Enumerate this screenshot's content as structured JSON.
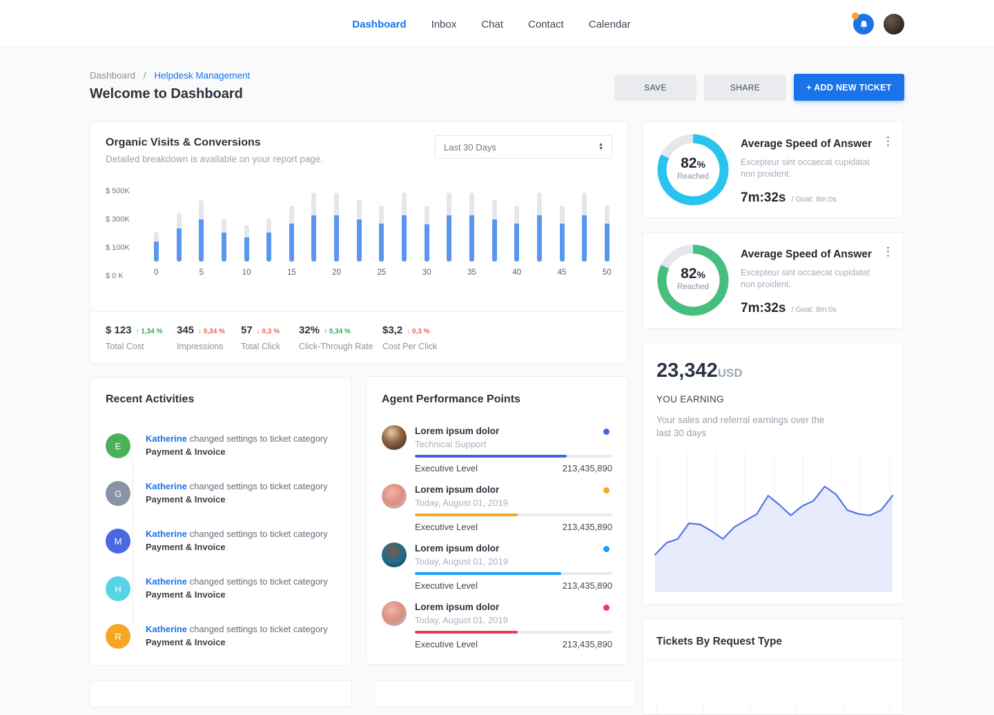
{
  "nav": {
    "items": [
      {
        "label": "Dashboard",
        "active": true
      },
      {
        "label": "Inbox",
        "active": false
      },
      {
        "label": "Chat",
        "active": false
      },
      {
        "label": "Contact",
        "active": false
      },
      {
        "label": "Calendar",
        "active": false
      }
    ]
  },
  "page": {
    "breadcrumb": {
      "parent": "Dashboard",
      "separator": "/",
      "current": "Helpdesk Management"
    },
    "title": "Welcome to Dashboard",
    "save_label": "SAVE",
    "share_label": "SHARE",
    "add_ticket_label": "+ ADD NEW TICKET"
  },
  "organic": {
    "title": "Organic Visits & Conversions",
    "subtitle": "Detailed breakdown is available on your report page.",
    "range_selected": "Last 30 Days",
    "stats": [
      {
        "value": "$ 123",
        "delta": "1,34 %",
        "direction": "up",
        "label": "Total Cost"
      },
      {
        "value": "345",
        "delta": "0,34 %",
        "direction": "down",
        "label": "Impressions"
      },
      {
        "value": "57",
        "delta": "0,3 %",
        "direction": "down",
        "label": "Total Click"
      },
      {
        "value": "32%",
        "delta": "0,34 %",
        "direction": "up",
        "label": "Click-Through Rate"
      },
      {
        "value": "$3,2",
        "delta": "0,3 %",
        "direction": "down",
        "label": "Cost Per Click"
      }
    ]
  },
  "chart_data": [
    {
      "id": "organic_bars",
      "type": "bar",
      "title": "Organic Visits & Conversions",
      "x": [
        0,
        2.5,
        5,
        7.5,
        10,
        12.5,
        15,
        17.5,
        20,
        22.5,
        25,
        27.5,
        30,
        32.5,
        35,
        37.5,
        40,
        42.5,
        45,
        47.5,
        50
      ],
      "x_tick_labels": [
        "0",
        "5",
        "10",
        "15",
        "20",
        "25",
        "30",
        "35",
        "40",
        "45",
        "50"
      ],
      "series": [
        {
          "name": "target",
          "color": "#e3e7ec",
          "values": [
            220,
            360,
            455,
            315,
            270,
            315,
            410,
            510,
            510,
            460,
            410,
            510,
            410,
            510,
            510,
            460,
            410,
            510,
            410,
            510,
            410
          ]
        },
        {
          "name": "actual",
          "color": "#5b96ee",
          "values": [
            150,
            245,
            310,
            215,
            180,
            215,
            280,
            340,
            340,
            310,
            280,
            340,
            275,
            340,
            340,
            310,
            280,
            340,
            280,
            340,
            280
          ]
        }
      ],
      "y_tick_labels": [
        "$ 500K",
        "$ 300K",
        "$ 100K",
        "$ 0 K"
      ],
      "ylim": [
        0,
        550
      ],
      "unit": "$K",
      "grid": false,
      "legend": false
    },
    {
      "id": "speed_donut_1",
      "type": "donut",
      "value": 82,
      "max": 100,
      "center_label": "Reached",
      "color": "#29c3ef",
      "track_color": "#e4e8ec"
    },
    {
      "id": "speed_donut_2",
      "type": "donut",
      "value": 82,
      "max": 100,
      "center_label": "Reached",
      "color": "#47be7d",
      "track_color": "#e4e8ec"
    },
    {
      "id": "earnings_area",
      "type": "area",
      "x_description": "last 30 days, evenly spaced",
      "values": [
        27,
        36,
        39,
        51,
        50,
        45,
        39,
        48,
        53,
        58,
        72,
        65,
        57,
        64,
        68,
        79,
        73,
        61,
        58,
        57,
        61,
        72
      ],
      "ylim": [
        0,
        100
      ],
      "line_color": "#5173e6",
      "fill_color": "#e7ebfb",
      "grid": "vertical",
      "legend": false
    }
  ],
  "activities": {
    "title": "Recent Activities",
    "items": [
      {
        "initial": "E",
        "color": "#4cb05a",
        "user": "Katherine",
        "action": "changed settings to ticket category",
        "category": "Payment & Invoice"
      },
      {
        "initial": "G",
        "color": "#8794a5",
        "user": "Katherine",
        "action": "changed settings to ticket category",
        "category": "Payment & Invoice"
      },
      {
        "initial": "M",
        "color": "#4a68e0",
        "user": "Katherine",
        "action": "changed settings to ticket category",
        "category": "Payment & Invoice"
      },
      {
        "initial": "H",
        "color": "#56d4e6",
        "user": "Katherine",
        "action": "changed settings to ticket category",
        "category": "Payment & Invoice"
      },
      {
        "initial": "R",
        "color": "#f5a623",
        "user": "Katherine",
        "action": "changed settings to ticket category",
        "category": "Payment & Invoice"
      }
    ]
  },
  "agents": {
    "title": "Agent Performance Points",
    "rows": [
      {
        "name": "Lorem ipsum dolor",
        "subtitle": "Technical Support",
        "color": "#4262e8",
        "progress": 77,
        "level": "Executive Level",
        "points": "213,435,890"
      },
      {
        "name": "Lorem ipsum dolor",
        "subtitle": "Today, August 01, 2019",
        "color": "#f5a623",
        "progress": 52,
        "level": "Executive Level",
        "points": "213,435,890"
      },
      {
        "name": "Lorem ipsum dolor",
        "subtitle": "Today, August 01, 2019",
        "color": "#18a0fb",
        "progress": 74,
        "level": "Executive Level",
        "points": "213,435,890"
      },
      {
        "name": "Lorem ipsum dolor",
        "subtitle": "Today, August 01, 2019",
        "color": "#f0355c",
        "progress": 52,
        "level": "Executive Level",
        "points": "213,435,890"
      }
    ]
  },
  "speed_cards": [
    {
      "title": "Average Speed of Answer",
      "description": "Excepteur sint occaecat cupidatat non proident.",
      "percent_value": "82",
      "percent_unit": "%",
      "percent_label": "Reached",
      "time": "7m:32s",
      "goal": "/ Goal: 8m:0s",
      "color": "#29c3ef"
    },
    {
      "title": "Average Speed of Answer",
      "description": "Excepteur sint occaecat cupidatat non proident.",
      "percent_value": "82",
      "percent_unit": "%",
      "percent_label": "Reached",
      "time": "7m:32s",
      "goal": "/ Goal: 8m:0s",
      "color": "#47be7d"
    }
  ],
  "earnings": {
    "amount": "23,342",
    "currency": "USD",
    "label": "YOU EARNING",
    "description": "Your sales and referral earnings over the last 30 days"
  },
  "tickets": {
    "title": "Tickets By Request Type"
  },
  "colors": {
    "accent": "#1a73e8",
    "bar_fill": "#5b96ee",
    "bar_track": "#e3e7ec",
    "positive": "#2fa84f",
    "negative": "#ee6352"
  }
}
